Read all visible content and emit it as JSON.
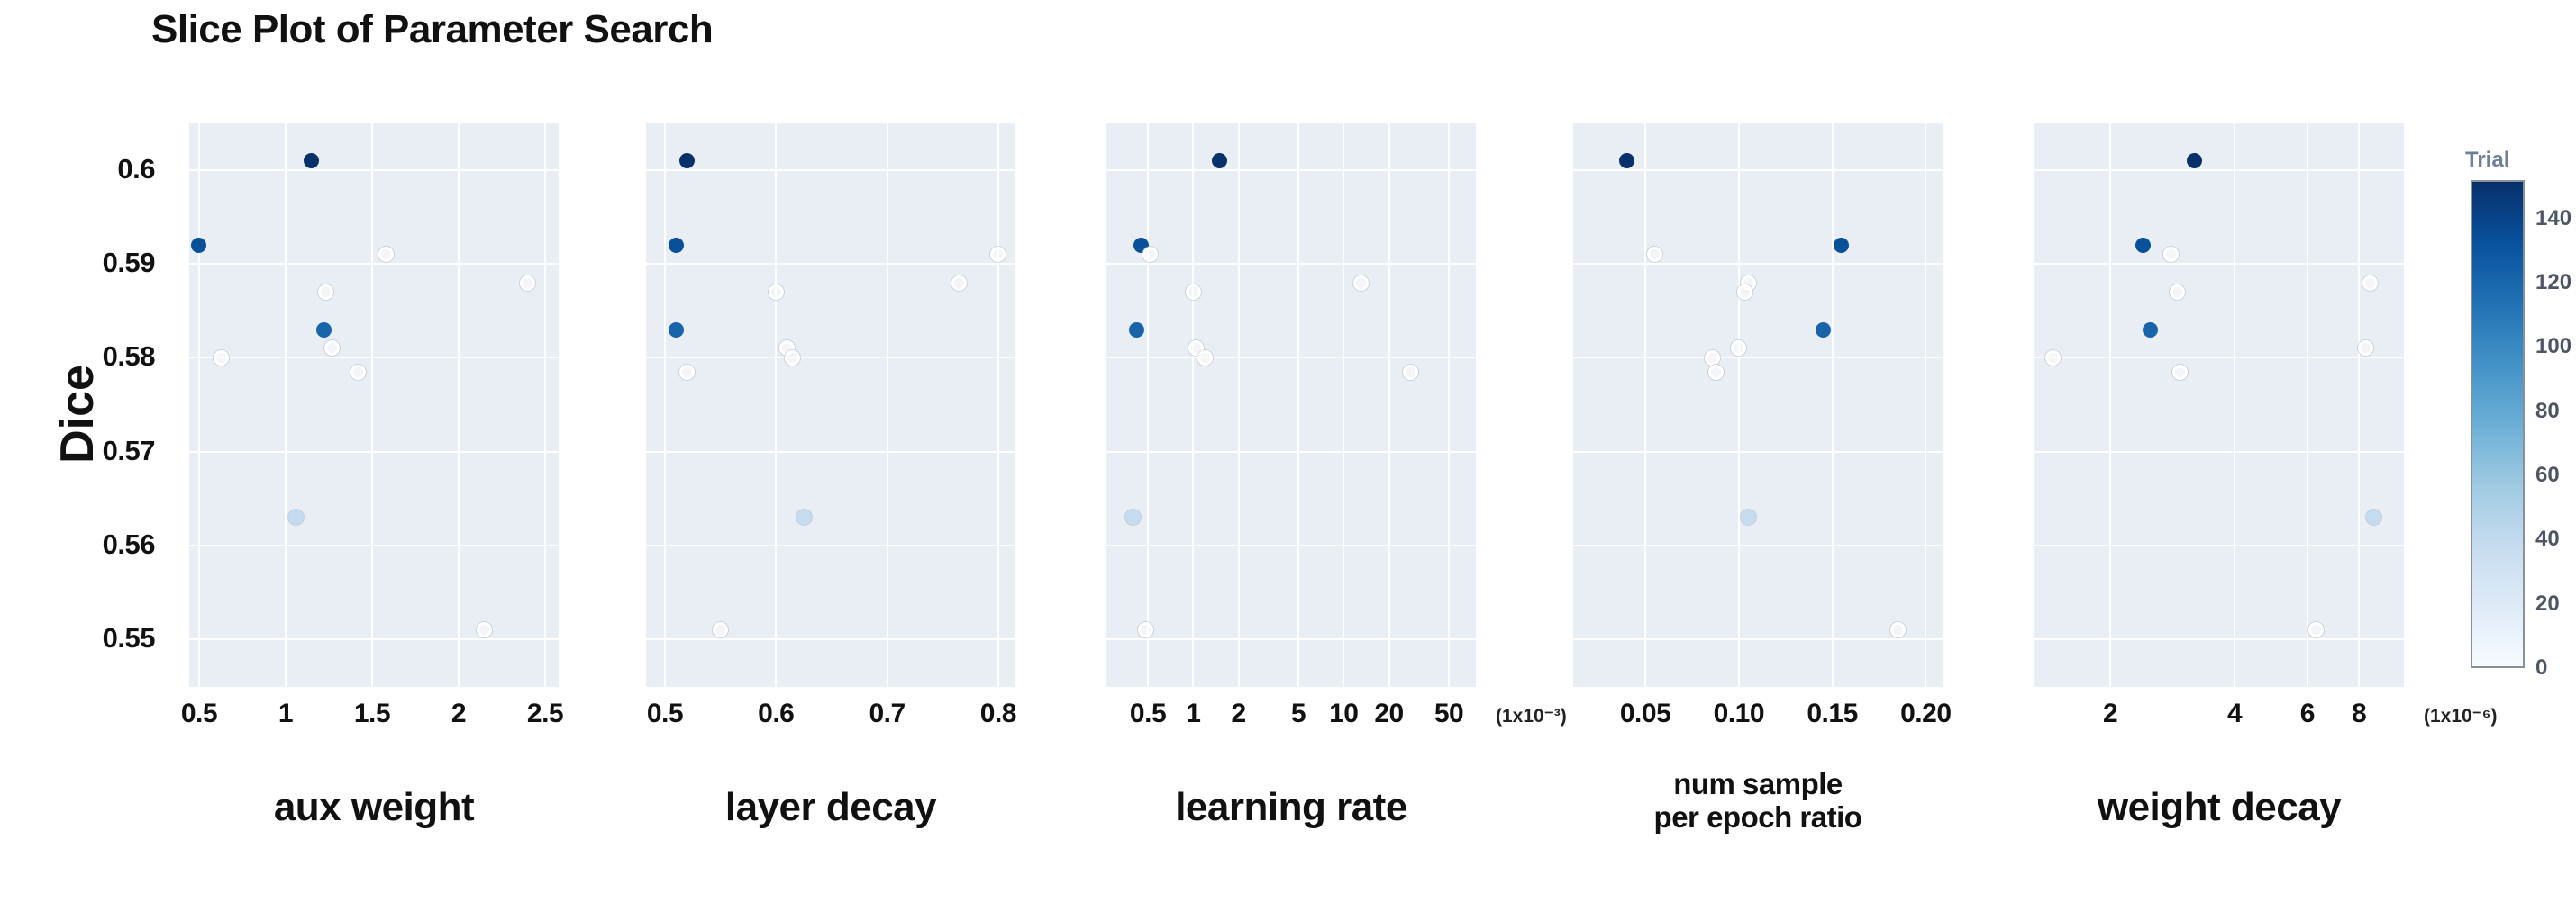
{
  "chart_data": {
    "type": "scatter",
    "title": "Slice Plot of Parameter Search",
    "y_axis": {
      "label": "Dice",
      "range": [
        0.5449,
        0.605
      ],
      "ticks": [
        {
          "value": 0.6,
          "label": "0.6"
        },
        {
          "value": 0.59,
          "label": "0.59"
        },
        {
          "value": 0.58,
          "label": "0.58"
        },
        {
          "value": 0.57,
          "label": "0.57"
        },
        {
          "value": 0.56,
          "label": "0.56"
        },
        {
          "value": 0.55,
          "label": "0.55"
        }
      ]
    },
    "subplots": [
      {
        "id": "aux-weight",
        "label_lines": [
          "aux weight"
        ],
        "scale": "linear",
        "range": [
          0.443,
          2.578
        ],
        "ticks": [
          {
            "value": 0.5,
            "label": "0.5"
          },
          {
            "value": 1,
            "label": "1"
          },
          {
            "value": 1.5,
            "label": "1.5"
          },
          {
            "value": 2,
            "label": "2"
          },
          {
            "value": 2.5,
            "label": "2.5"
          }
        ],
        "unit": null
      },
      {
        "id": "layer-decay",
        "label_lines": [
          "layer decay"
        ],
        "scale": "linear",
        "range": [
          0.483,
          0.8155
        ],
        "ticks": [
          {
            "value": 0.5,
            "label": "0.5"
          },
          {
            "value": 0.6,
            "label": "0.6"
          },
          {
            "value": 0.7,
            "label": "0.7"
          },
          {
            "value": 0.8,
            "label": "0.8"
          }
        ],
        "unit": null
      },
      {
        "id": "learning-rate",
        "label_lines": [
          "learning rate"
        ],
        "scale": "log",
        "range": [
          0.265,
          75.6
        ],
        "ticks": [
          {
            "value": 0.5,
            "label": "0.5"
          },
          {
            "value": 1,
            "label": "1"
          },
          {
            "value": 2,
            "label": "2"
          },
          {
            "value": 5,
            "label": "5"
          },
          {
            "value": 10,
            "label": "10"
          },
          {
            "value": 20,
            "label": "20"
          },
          {
            "value": 50,
            "label": "50"
          }
        ],
        "unit": "(1x10⁻³)"
      },
      {
        "id": "num-sample-per-epoch-ratio",
        "label_lines": [
          "num sample",
          "per epoch ratio"
        ],
        "scale": "linear",
        "range": [
          0.0114,
          0.209
        ],
        "ticks": [
          {
            "value": 0.05,
            "label": "0.05"
          },
          {
            "value": 0.1,
            "label": "0.10"
          },
          {
            "value": 0.15,
            "label": "0.15"
          },
          {
            "value": 0.2,
            "label": "0.20"
          }
        ],
        "unit": null
      },
      {
        "id": "weight-decay",
        "label_lines": [
          "weight decay"
        ],
        "scale": "log",
        "range": [
          1.311,
          10.28
        ],
        "ticks": [
          {
            "value": 2,
            "label": "2"
          },
          {
            "value": 4,
            "label": "4"
          },
          {
            "value": 6,
            "label": "6"
          },
          {
            "value": 8,
            "label": "8"
          }
        ],
        "unit": "(1x10⁻⁶)"
      }
    ],
    "trials": [
      {
        "trial": 150,
        "dice": 0.601,
        "values": [
          1.15,
          0.52,
          1.5,
          0.04,
          3.2
        ]
      },
      {
        "trial": 132,
        "dice": 0.592,
        "values": [
          0.5,
          0.51,
          0.45,
          0.155,
          2.4
        ]
      },
      {
        "trial": 6,
        "dice": 0.591,
        "values": [
          1.58,
          0.8,
          0.52,
          0.055,
          2.8
        ]
      },
      {
        "trial": 14,
        "dice": 0.588,
        "values": [
          2.4,
          0.765,
          13.0,
          0.105,
          8.5
        ]
      },
      {
        "trial": 16,
        "dice": 0.587,
        "values": [
          1.23,
          0.6,
          1.0,
          0.103,
          2.9
        ]
      },
      {
        "trial": 120,
        "dice": 0.583,
        "values": [
          1.22,
          0.51,
          0.42,
          0.145,
          2.5
        ]
      },
      {
        "trial": 9,
        "dice": 0.581,
        "values": [
          1.27,
          0.61,
          1.05,
          0.1,
          8.3
        ]
      },
      {
        "trial": 19,
        "dice": 0.58,
        "values": [
          0.63,
          0.615,
          1.2,
          0.086,
          1.45
        ]
      },
      {
        "trial": 4,
        "dice": 0.5785,
        "values": [
          1.42,
          0.52,
          28.0,
          0.088,
          2.95
        ]
      },
      {
        "trial": 38,
        "dice": 0.563,
        "values": [
          1.06,
          0.625,
          0.4,
          0.105,
          8.7
        ]
      },
      {
        "trial": 1,
        "dice": 0.551,
        "values": [
          2.15,
          0.55,
          0.48,
          0.185,
          6.3
        ]
      }
    ],
    "colorbar": {
      "title": "Trial",
      "range": [
        0,
        152
      ],
      "ticks": [
        {
          "value": 140,
          "label": "140"
        },
        {
          "value": 120,
          "label": "120"
        },
        {
          "value": 100,
          "label": "100"
        },
        {
          "value": 80,
          "label": "80"
        },
        {
          "value": 60,
          "label": "60"
        },
        {
          "value": 40,
          "label": "40"
        },
        {
          "value": 20,
          "label": "20"
        },
        {
          "value": 0,
          "label": "0"
        }
      ],
      "scale": [
        [
          0,
          "#f7fbff"
        ],
        [
          0.125,
          "#deebf7"
        ],
        [
          0.25,
          "#c6dbef"
        ],
        [
          0.375,
          "#9ecae1"
        ],
        [
          0.5,
          "#6baed6"
        ],
        [
          0.625,
          "#4292c6"
        ],
        [
          0.75,
          "#2171b5"
        ],
        [
          0.875,
          "#08519c"
        ],
        [
          1,
          "#08306b"
        ]
      ]
    },
    "style": {
      "plot_background": "#e9edf4",
      "gridline_color": "#ffffff",
      "pale_marker_ring": "#9aa6b8"
    },
    "legend_position": "right",
    "grid": true
  }
}
